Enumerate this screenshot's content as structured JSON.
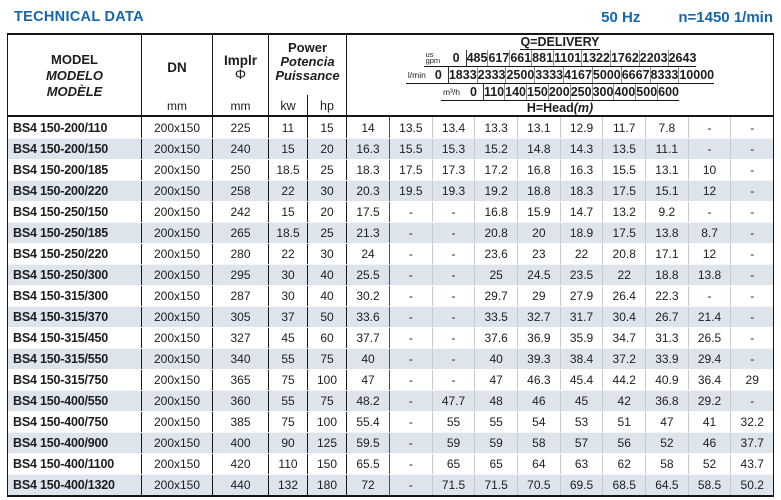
{
  "page": {
    "title": "TECHNICAL DATA",
    "frequency": "50 Hz",
    "speed": "n=1450 1/min"
  },
  "table": {
    "model_header": {
      "en": "MODEL",
      "es": "MODELO",
      "fr": "MODÈLE"
    },
    "dn": {
      "label": "DN",
      "unit": "mm"
    },
    "impeller": {
      "label": "Implr",
      "symbol": "Φ",
      "unit": "mm"
    },
    "power": {
      "en": "Power",
      "es": "Potencia",
      "fr": "Puissance",
      "kw": "kw",
      "hp": "hp"
    },
    "delivery": {
      "title": "Q=DELIVERY",
      "unit_rows": [
        {
          "unit_top": "us",
          "unit_bottom": "gpm",
          "zero": "0",
          "values": [
            "485",
            "617",
            "661",
            "881",
            "1101",
            "1322",
            "1762",
            "2203",
            "2643"
          ]
        },
        {
          "unit": "l/min",
          "zero": "0",
          "values": [
            "1833",
            "2333",
            "2500",
            "3333",
            "4167",
            "5000",
            "6667",
            "8333",
            "10000"
          ]
        },
        {
          "unit": "m³/h",
          "zero": "0",
          "values": [
            "110",
            "140",
            "150",
            "200",
            "250",
            "300",
            "400",
            "500",
            "600"
          ]
        }
      ],
      "head_label": "H=Head",
      "head_unit": "(m)"
    },
    "rows": [
      {
        "model": "BS4 150-200/110",
        "dn": "200x150",
        "impeller": "225",
        "kw": "11",
        "hp": "15",
        "head": [
          "14",
          "13.5",
          "13.4",
          "13.3",
          "13.1",
          "12.9",
          "11.7",
          "7.8",
          "-",
          "-"
        ]
      },
      {
        "model": "BS4 150-200/150",
        "dn": "200x150",
        "impeller": "240",
        "kw": "15",
        "hp": "20",
        "head": [
          "16.3",
          "15.5",
          "15.3",
          "15.2",
          "14.8",
          "14.3",
          "13.5",
          "11.1",
          "-",
          "-"
        ]
      },
      {
        "model": "BS4 150-200/185",
        "dn": "200x150",
        "impeller": "250",
        "kw": "18.5",
        "hp": "25",
        "head": [
          "18.3",
          "17.5",
          "17.3",
          "17.2",
          "16.8",
          "16.3",
          "15.5",
          "13.1",
          "10",
          "-"
        ]
      },
      {
        "model": "BS4 150-200/220",
        "dn": "200x150",
        "impeller": "258",
        "kw": "22",
        "hp": "30",
        "head": [
          "20.3",
          "19.5",
          "19.3",
          "19.2",
          "18.8",
          "18.3",
          "17.5",
          "15.1",
          "12",
          "-"
        ]
      },
      {
        "model": "BS4 150-250/150",
        "dn": "200x150",
        "impeller": "242",
        "kw": "15",
        "hp": "20",
        "head": [
          "17.5",
          "-",
          "-",
          "16.8",
          "15.9",
          "14.7",
          "13.2",
          "9.2",
          "-",
          "-"
        ]
      },
      {
        "model": "BS4 150-250/185",
        "dn": "200x150",
        "impeller": "265",
        "kw": "18.5",
        "hp": "25",
        "head": [
          "21.3",
          "-",
          "-",
          "20.8",
          "20",
          "18.9",
          "17.5",
          "13.8",
          "8.7",
          "-"
        ]
      },
      {
        "model": "BS4 150-250/220",
        "dn": "200x150",
        "impeller": "280",
        "kw": "22",
        "hp": "30",
        "head": [
          "24",
          "-",
          "-",
          "23.6",
          "23",
          "22",
          "20.8",
          "17.1",
          "12",
          "-"
        ]
      },
      {
        "model": "BS4 150-250/300",
        "dn": "200x150",
        "impeller": "295",
        "kw": "30",
        "hp": "40",
        "head": [
          "25.5",
          "-",
          "-",
          "25",
          "24.5",
          "23.5",
          "22",
          "18.8",
          "13.8",
          "-"
        ]
      },
      {
        "model": "BS4 150-315/300",
        "dn": "200x150",
        "impeller": "287",
        "kw": "30",
        "hp": "40",
        "head": [
          "30.2",
          "-",
          "-",
          "29.7",
          "29",
          "27.9",
          "26.4",
          "22.3",
          "-",
          "-"
        ]
      },
      {
        "model": "BS4 150-315/370",
        "dn": "200x150",
        "impeller": "305",
        "kw": "37",
        "hp": "50",
        "head": [
          "33.6",
          "-",
          "-",
          "33.5",
          "32.7",
          "31.7",
          "30.4",
          "26.7",
          "21.4",
          "-"
        ]
      },
      {
        "model": "BS4 150-315/450",
        "dn": "200x150",
        "impeller": "327",
        "kw": "45",
        "hp": "60",
        "head": [
          "37.7",
          "-",
          "-",
          "37.6",
          "36.9",
          "35.9",
          "34.7",
          "31.3",
          "26.5",
          "-"
        ]
      },
      {
        "model": "BS4 150-315/550",
        "dn": "200x150",
        "impeller": "340",
        "kw": "55",
        "hp": "75",
        "head": [
          "40",
          "-",
          "-",
          "40",
          "39.3",
          "38.4",
          "37.2",
          "33.9",
          "29.4",
          "-"
        ]
      },
      {
        "model": "BS4 150-315/750",
        "dn": "200x150",
        "impeller": "365",
        "kw": "75",
        "hp": "100",
        "head": [
          "47",
          "-",
          "-",
          "47",
          "46.3",
          "45.4",
          "44.2",
          "40.9",
          "36.4",
          "29"
        ]
      },
      {
        "model": "BS4 150-400/550",
        "dn": "200x150",
        "impeller": "360",
        "kw": "55",
        "hp": "75",
        "head": [
          "48.2",
          "-",
          "47.7",
          "48",
          "46",
          "45",
          "42",
          "36.8",
          "29.2",
          "-"
        ]
      },
      {
        "model": "BS4 150-400/750",
        "dn": "200x150",
        "impeller": "385",
        "kw": "75",
        "hp": "100",
        "head": [
          "55.4",
          "-",
          "55",
          "55",
          "54",
          "53",
          "51",
          "47",
          "41",
          "32.2"
        ]
      },
      {
        "model": "BS4 150-400/900",
        "dn": "200x150",
        "impeller": "400",
        "kw": "90",
        "hp": "125",
        "head": [
          "59.5",
          "-",
          "59",
          "59",
          "58",
          "57",
          "56",
          "52",
          "46",
          "37.7"
        ]
      },
      {
        "model": "BS4 150-400/1100",
        "dn": "200x150",
        "impeller": "420",
        "kw": "110",
        "hp": "150",
        "head": [
          "65.5",
          "-",
          "65",
          "65",
          "64",
          "63",
          "62",
          "58",
          "52",
          "43.7"
        ]
      },
      {
        "model": "BS4 150-400/1320",
        "dn": "200x150",
        "impeller": "440",
        "kw": "132",
        "hp": "180",
        "head": [
          "72",
          "-",
          "71.5",
          "71.5",
          "70.5",
          "69.5",
          "68.5",
          "64.5",
          "58.5",
          "50.2"
        ]
      }
    ]
  },
  "colors": {
    "accent_blue": "#1565ab",
    "row_stripe": "#dee4ec"
  }
}
